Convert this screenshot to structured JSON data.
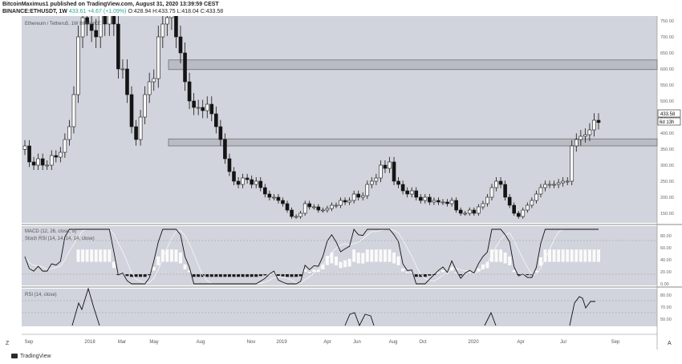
{
  "header": {
    "line1": "BitcoinMaximus1 published on TradingView.com, August 31, 2020 13:39:59 CEST",
    "symbol": "BINANCE:ETHUSDT, 1W",
    "last": "433.61",
    "change": "+4.67 (+1.09%)",
    "ohlc": "O:428.94 H:433.75 L:418.04 C:433.58"
  },
  "footer": {
    "brand": "TradingView",
    "settings_glyph": "Z",
    "axis_mode": "A"
  },
  "pane_labels": {
    "main": "Ethereum / Tetheru5, 1W BINANCE",
    "macd": "MACD (12, 26, close, 9)",
    "stoch": "Stoch RSI (14, 14, 14, 14, close)",
    "rsi": "RSI (14, close)"
  },
  "price_badge": "433.58",
  "time_badge": "6d 13h",
  "colors": {
    "pane_bg": "#d1d4dc",
    "zone": "#b9bcc4",
    "candle": "#141414",
    "osc_line": "#111111",
    "signal_line": "#f7f7f7"
  },
  "chart_data": [
    {
      "type": "candlestick",
      "title": "Ethereum / Tetheru5, 1W BINANCE",
      "interval": "1W",
      "x_ticks": [
        "Sep",
        "2018",
        "Mar",
        "May",
        "Aug",
        "Nov",
        "2019",
        "Apr",
        "Jun",
        "Aug",
        "Oct",
        "2020",
        "Apr",
        "Jul",
        "Sep"
      ],
      "y_ticks": [
        750,
        700,
        650,
        600,
        550,
        500,
        450,
        400,
        350,
        300,
        250,
        200,
        150
      ],
      "ylim": [
        130,
        755
      ],
      "resistance_zones": [
        [
          598,
          628
        ],
        [
          360,
          382
        ]
      ],
      "closes": [
        360,
        310,
        300,
        320,
        300,
        300,
        330,
        325,
        340,
        380,
        420,
        520,
        700,
        760,
        740,
        720,
        700,
        780,
        740,
        820,
        740,
        600,
        600,
        520,
        420,
        380,
        450,
        520,
        560,
        570,
        700,
        740,
        760,
        800,
        700,
        650,
        560,
        500,
        480,
        480,
        470,
        490,
        460,
        420,
        380,
        320,
        280,
        250,
        240,
        260,
        255,
        240,
        250,
        230,
        210,
        200,
        200,
        190,
        180,
        160,
        140,
        140,
        150,
        180,
        170,
        170,
        160,
        160,
        165,
        175,
        175,
        190,
        185,
        190,
        210,
        200,
        205,
        240,
        250,
        260,
        300,
        290,
        310,
        250,
        240,
        220,
        210,
        220,
        200,
        190,
        200,
        185,
        190,
        185,
        185,
        180,
        190,
        160,
        150,
        150,
        160,
        150,
        170,
        180,
        200,
        230,
        250,
        240,
        200,
        175,
        150,
        140,
        160,
        175,
        190,
        210,
        230,
        240,
        240,
        240,
        245,
        250,
        250,
        360,
        380,
        390,
        395,
        410,
        440,
        433
      ],
      "volume_note": "weekly OHLC; ~130 candles Aug 2017 - Aug 2020"
    },
    {
      "type": "line",
      "title": "MACD (12, 26, close, 9)",
      "y_ticks": [
        80,
        60,
        40,
        20,
        0
      ],
      "note": "stochastic-style oscillator line with signal line and histogram"
    },
    {
      "type": "line",
      "title": "RSI (14, close)",
      "y_ticks": [
        80,
        70,
        50
      ],
      "note": "only overbought segments visible above lower bound"
    }
  ]
}
